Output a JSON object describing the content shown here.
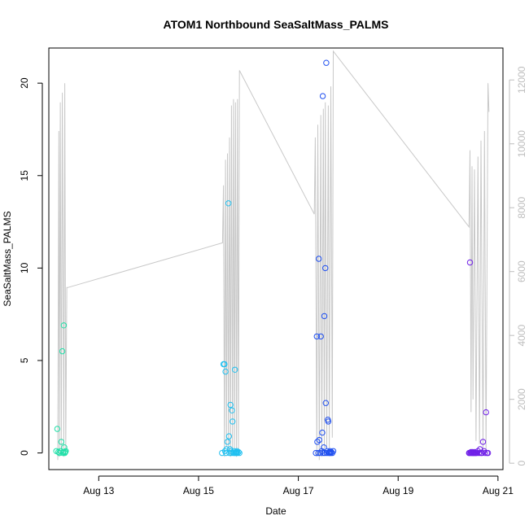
{
  "chart_data": {
    "type": "scatter",
    "title": "ATOM1 Northbound SeaSaltMass_PALMS",
    "xlabel": "Date",
    "ylabel": "SeaSaltMass_PALMS",
    "x_ticks": [
      "Aug 13",
      "Aug 15",
      "Aug 17",
      "Aug 19",
      "Aug 21"
    ],
    "x_tick_days": [
      13,
      15,
      17,
      19,
      21
    ],
    "xlim_days": [
      12.0,
      21.1
    ],
    "y_ticks": [
      0,
      5,
      10,
      15,
      20
    ],
    "ylim": [
      -0.9,
      21.9
    ],
    "y2_ticks": [
      0,
      2000,
      4000,
      6000,
      8000,
      10000,
      12000
    ],
    "y2lim": [
      -200,
      13000
    ],
    "grid": false,
    "colors": {
      "altitude_line": "#c8c8c8",
      "right_axis": "#bdbdbd",
      "flight1": "#1fe0a8",
      "flight2": "#20c0f0",
      "flight3": "#2050f0",
      "flight4": "#7020e8"
    },
    "altitude_line": {
      "x": [
        12.18,
        12.2,
        12.21,
        12.23,
        12.25,
        12.27,
        12.3,
        12.32,
        12.34,
        12.36,
        12.38,
        15.48,
        15.5,
        15.52,
        15.54,
        15.56,
        15.58,
        15.6,
        15.62,
        15.64,
        15.66,
        15.68,
        15.7,
        15.72,
        15.74,
        15.76,
        15.78,
        15.8,
        15.82,
        17.32,
        17.34,
        17.37,
        17.39,
        17.42,
        17.45,
        17.47,
        17.5,
        17.52,
        17.54,
        17.57,
        17.6,
        17.62,
        17.65,
        17.68,
        17.7,
        20.42,
        20.44,
        20.46,
        20.48,
        20.5,
        20.53,
        20.56,
        20.6,
        20.63,
        20.66,
        20.7,
        20.73,
        20.76,
        20.8,
        20.82
      ],
      "y": [
        100,
        10400,
        200,
        11300,
        300,
        11600,
        200,
        11900,
        400,
        5500,
        5500,
        6900,
        8700,
        200,
        9500,
        500,
        9700,
        300,
        10200,
        200,
        11200,
        400,
        11400,
        300,
        11300,
        200,
        11400,
        300,
        12300,
        7800,
        10200,
        200,
        10600,
        100,
        10900,
        200,
        11100,
        300,
        11300,
        500,
        11200,
        400,
        11800,
        800,
        12900,
        7400,
        9800,
        1600,
        9300,
        2000,
        9200,
        700,
        9600,
        600,
        10100,
        400,
        10400,
        300,
        11900,
        11000
      ]
    },
    "series": [
      {
        "x": [
          12.15,
          12.17,
          12.19,
          12.21,
          12.23,
          12.25,
          12.27,
          12.28,
          12.29,
          12.3,
          12.31,
          12.32,
          12.33,
          12.34
        ],
        "y": [
          0.1,
          1.3,
          0.05,
          0.0,
          0.1,
          0.6,
          5.5,
          0.0,
          0.05,
          6.9,
          0.3,
          0.0,
          0.05,
          0.1
        ]
      },
      {
        "x": [
          15.47,
          15.5,
          15.52,
          15.53,
          15.54,
          15.55,
          15.56,
          15.58,
          15.6,
          15.61,
          15.62,
          15.63,
          15.64,
          15.65,
          15.66,
          15.67,
          15.68,
          15.7,
          15.71,
          15.72,
          15.73,
          15.74,
          15.75,
          15.76,
          15.77,
          15.78,
          15.8,
          15.82
        ],
        "y": [
          0.0,
          4.8,
          4.8,
          0.1,
          4.4,
          0.0,
          0.2,
          0.6,
          13.5,
          0.9,
          0.0,
          0.2,
          2.6,
          0.1,
          0.0,
          2.3,
          1.7,
          0.0,
          0.1,
          0.0,
          4.5,
          0.0,
          0.05,
          0.0,
          0.1,
          0.0,
          0.05,
          0.0
        ]
      },
      {
        "x": [
          17.35,
          17.37,
          17.38,
          17.4,
          17.41,
          17.42,
          17.44,
          17.45,
          17.47,
          17.48,
          17.49,
          17.5,
          17.51,
          17.52,
          17.53,
          17.54,
          17.55,
          17.56,
          17.57,
          17.58,
          17.59,
          17.6,
          17.61,
          17.62,
          17.63,
          17.64,
          17.65,
          17.66,
          17.68,
          17.7
        ],
        "y": [
          0.0,
          6.3,
          0.6,
          0.0,
          10.5,
          0.7,
          0.0,
          6.3,
          0.1,
          1.1,
          19.3,
          0.0,
          0.3,
          7.4,
          0.0,
          10.0,
          2.7,
          21.1,
          0.0,
          0.1,
          1.8,
          1.7,
          0.0,
          0.05,
          0.0,
          0.1,
          0.0,
          0.05,
          0.0,
          0.1
        ]
      },
      {
        "x": [
          20.42,
          20.43,
          20.44,
          20.45,
          20.46,
          20.47,
          20.48,
          20.49,
          20.5,
          20.51,
          20.52,
          20.53,
          20.54,
          20.55,
          20.56,
          20.58,
          20.6,
          20.62,
          20.64,
          20.66,
          20.68,
          20.7,
          20.72,
          20.74,
          20.76,
          20.78,
          20.8
        ],
        "y": [
          0.0,
          0.0,
          10.3,
          0.0,
          0.05,
          0.0,
          0.0,
          0.05,
          0.0,
          0.0,
          0.0,
          0.05,
          0.0,
          0.0,
          0.0,
          0.0,
          0.1,
          0.0,
          0.2,
          0.0,
          0.0,
          0.6,
          0.1,
          0.0,
          2.2,
          0.0,
          0.0
        ]
      }
    ]
  }
}
